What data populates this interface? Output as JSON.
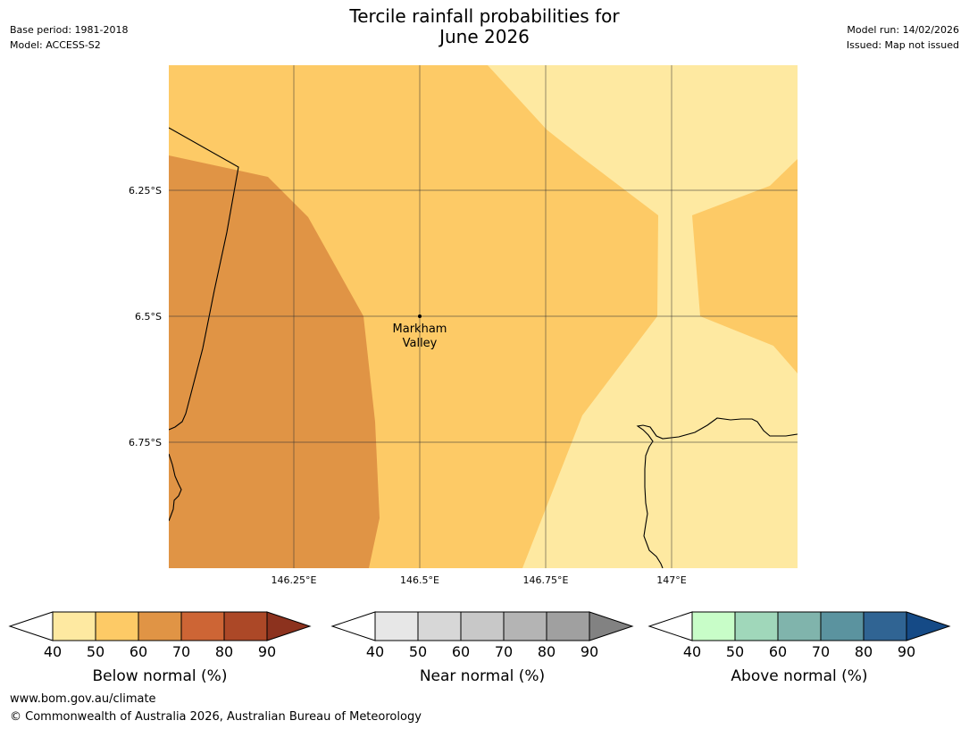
{
  "title": {
    "line1": "Tercile rainfall probabilities for",
    "line2": "June 2026"
  },
  "meta_left": {
    "base_period": "Base period: 1981-2018",
    "model": "Model: ACCESS-S2"
  },
  "meta_right": {
    "model_run": "Model run: 14/02/2026",
    "issued": "Issued: Map not issued"
  },
  "map": {
    "location_label_1": "Markham",
    "location_label_2": "Valley",
    "lat_ticks": [
      "6.25°S",
      "6.5°S",
      "6.75°S"
    ],
    "lon_ticks": [
      "146.25°E",
      "146.5°E",
      "146.75°E",
      "147°E"
    ],
    "colors": {
      "below_40_50": "#fee9a1",
      "below_50_60": "#fdca66",
      "below_60_70": "#e09445"
    }
  },
  "colorbars": [
    {
      "label": "Below normal (%)",
      "ticks": [
        "40",
        "50",
        "60",
        "70",
        "80",
        "90"
      ],
      "colors": [
        "#ffffff",
        "#fee9a1",
        "#fdca66",
        "#e09445",
        "#cd6535",
        "#ac4827",
        "#8c321e"
      ]
    },
    {
      "label": "Near normal (%)",
      "ticks": [
        "40",
        "50",
        "60",
        "70",
        "80",
        "90"
      ],
      "colors": [
        "#ffffff",
        "#e7e7e7",
        "#d7d7d7",
        "#c8c8c8",
        "#b4b4b4",
        "#a0a0a0",
        "#828282"
      ]
    },
    {
      "label": "Above normal (%)",
      "ticks": [
        "40",
        "50",
        "60",
        "70",
        "80",
        "90"
      ],
      "colors": [
        "#ffffff",
        "#c8fdc8",
        "#a0d7ba",
        "#80b4ac",
        "#5b939f",
        "#306493",
        "#154a86"
      ]
    }
  ],
  "footer": {
    "url": "www.bom.gov.au/climate",
    "copyright": "© Commonwealth of Australia 2026, Australian Bureau of Meteorology"
  }
}
